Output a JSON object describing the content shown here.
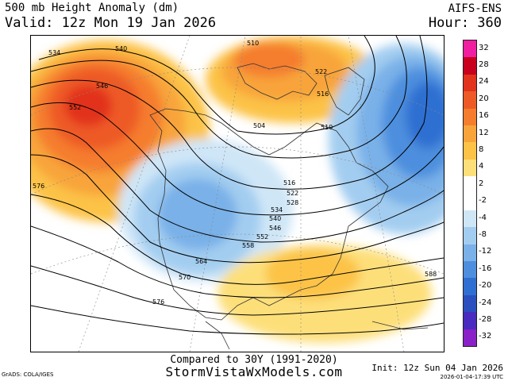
{
  "header": {
    "title": "500 mb Height Anomaly (dm)",
    "valid": "Valid: 12z Mon 19 Jan 2026",
    "model": "AIFS-ENS",
    "hour": "Hour: 360"
  },
  "colorbar": {
    "entries": [
      {
        "label": "32",
        "color": "#f01ea0"
      },
      {
        "label": "28",
        "color": "#c8001e"
      },
      {
        "label": "24",
        "color": "#e2331c"
      },
      {
        "label": "20",
        "color": "#ee5a26"
      },
      {
        "label": "16",
        "color": "#f57d2e"
      },
      {
        "label": "12",
        "color": "#f8a43a"
      },
      {
        "label": "8",
        "color": "#fcc347"
      },
      {
        "label": "4",
        "color": "#fddf7a"
      },
      {
        "label": "2",
        "color": "#ffffff"
      },
      {
        "label": "-2",
        "color": "#ffffff"
      },
      {
        "label": "-4",
        "color": "#cfe6f7"
      },
      {
        "label": "-8",
        "color": "#a3cdf0"
      },
      {
        "label": "-12",
        "color": "#79b1e8"
      },
      {
        "label": "-16",
        "color": "#4d8fde"
      },
      {
        "label": "-20",
        "color": "#2f6fd1"
      },
      {
        "label": "-24",
        "color": "#2b4fbf"
      },
      {
        "label": "-28",
        "color": "#4a2bbf"
      },
      {
        "label": "-32",
        "color": "#8a20c8"
      }
    ]
  },
  "map_labels": [
    "534",
    "540",
    "546",
    "552",
    "510",
    "522",
    "516",
    "504",
    "510",
    "516",
    "522",
    "528",
    "534",
    "540",
    "546",
    "552",
    "558",
    "564",
    "570",
    "576",
    "576",
    "588"
  ],
  "footer": {
    "compared": "Compared to 30Y (1991-2020)",
    "site": "StormVistaWxModels.com",
    "grads": "GrADS: COLA/IGES",
    "init": "Init: 12z Sun 04 Jan 2026",
    "timestamp": "2026-01-04-17:39 UTC"
  }
}
